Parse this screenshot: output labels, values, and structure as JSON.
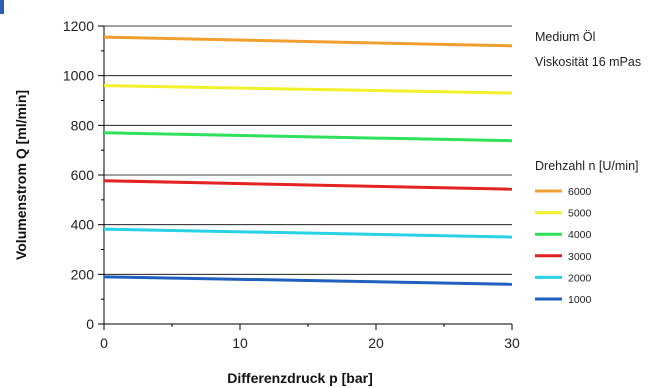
{
  "chart_data": {
    "type": "line",
    "xlabel": "Differenzdruck p [bar]",
    "ylabel": "Volumenstrom Q [ml/min]",
    "xlim": [
      0,
      30
    ],
    "ylim": [
      0,
      1200
    ],
    "x_ticks": [
      0,
      10,
      20,
      30
    ],
    "y_ticks": [
      0,
      200,
      400,
      600,
      800,
      1000,
      1200
    ],
    "grid": "horizontal",
    "annotations": [
      "Medium Öl",
      "Viskosität  16 mPas"
    ],
    "legend_title": "Drehzahl n [U/min]",
    "legend_position": "right",
    "x": [
      0,
      30
    ],
    "series": [
      {
        "name": "6000",
        "color": "#f0a030",
        "values": [
          1155,
          1120
        ]
      },
      {
        "name": "5000",
        "color": "#f2f22a",
        "values": [
          960,
          930
        ]
      },
      {
        "name": "4000",
        "color": "#2ee05a",
        "values": [
          770,
          738
        ]
      },
      {
        "name": "3000",
        "color": "#e32222",
        "values": [
          577,
          543
        ]
      },
      {
        "name": "2000",
        "color": "#27d2e6",
        "values": [
          382,
          350
        ]
      },
      {
        "name": "1000",
        "color": "#1f5fbf",
        "values": [
          190,
          160
        ]
      }
    ]
  }
}
